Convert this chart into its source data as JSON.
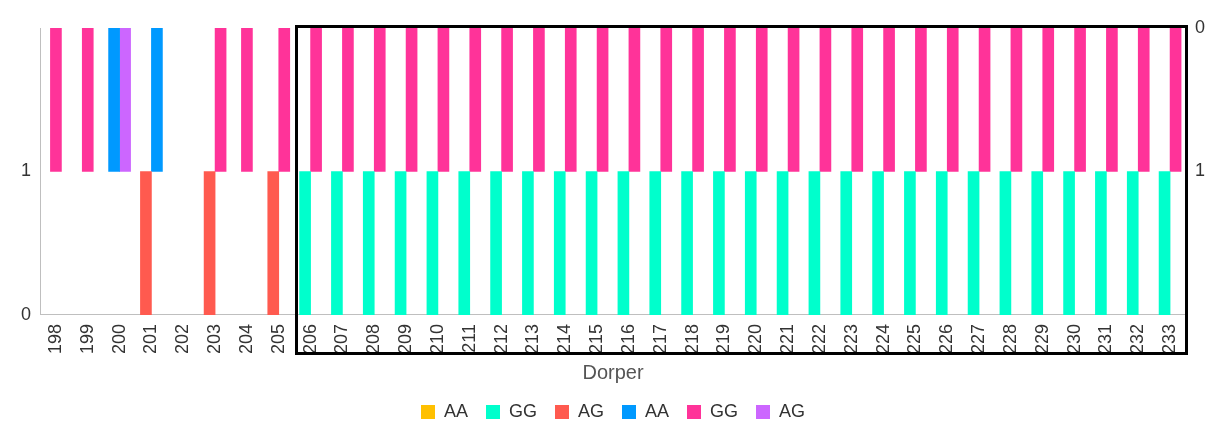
{
  "chart_data": {
    "type": "bar",
    "xlabel": "Dorper",
    "categories": [
      "198",
      "199",
      "200",
      "201",
      "202",
      "203",
      "204",
      "205",
      "206",
      "207",
      "208",
      "209",
      "210",
      "211",
      "212",
      "213",
      "214",
      "215",
      "216",
      "217",
      "218",
      "219",
      "220",
      "221",
      "222",
      "223",
      "224",
      "225",
      "226",
      "227",
      "228",
      "229",
      "230",
      "231",
      "232",
      "233"
    ],
    "series": [
      {
        "name": "AA",
        "color": "#ffc000",
        "values": [
          null,
          null,
          null,
          null,
          null,
          null,
          null,
          null,
          null,
          null,
          null,
          null,
          null,
          null,
          null,
          null,
          null,
          null,
          null,
          null,
          null,
          null,
          null,
          null,
          null,
          null,
          null,
          null,
          null,
          null,
          null,
          null,
          null,
          null,
          null,
          null
        ]
      },
      {
        "name": "GG",
        "color": "#00ffcc",
        "values": [
          null,
          null,
          null,
          null,
          null,
          null,
          null,
          null,
          1,
          1,
          1,
          1,
          1,
          1,
          1,
          1,
          1,
          1,
          1,
          1,
          1,
          1,
          1,
          1,
          1,
          1,
          1,
          1,
          1,
          1,
          1,
          1,
          1,
          1,
          1,
          1
        ]
      },
      {
        "name": "AG",
        "color": "#ff5a4f",
        "values": [
          null,
          null,
          null,
          1,
          null,
          1,
          null,
          1,
          null,
          null,
          null,
          null,
          null,
          null,
          null,
          null,
          null,
          null,
          null,
          null,
          null,
          null,
          null,
          null,
          null,
          null,
          null,
          null,
          null,
          null,
          null,
          null,
          null,
          null,
          null,
          null
        ]
      },
      {
        "name": "AA",
        "color": "#0099ff",
        "axis": "y2",
        "values": [
          null,
          null,
          1,
          1,
          null,
          null,
          null,
          null,
          null,
          null,
          null,
          null,
          null,
          null,
          null,
          null,
          null,
          null,
          null,
          null,
          null,
          null,
          null,
          null,
          null,
          null,
          null,
          null,
          null,
          null,
          null,
          null,
          null,
          null,
          null,
          null
        ]
      },
      {
        "name": "GG",
        "color": "#ff3399",
        "axis": "y2",
        "values": [
          1,
          1,
          null,
          null,
          null,
          1,
          1,
          1,
          1,
          1,
          1,
          1,
          1,
          1,
          1,
          1,
          1,
          1,
          1,
          1,
          1,
          1,
          1,
          1,
          1,
          1,
          1,
          1,
          1,
          1,
          1,
          1,
          1,
          1,
          1,
          1
        ]
      },
      {
        "name": "AG",
        "color": "#cc66ff",
        "axis": "y2",
        "values": [
          null,
          null,
          1,
          null,
          null,
          null,
          null,
          null,
          null,
          null,
          null,
          null,
          null,
          null,
          null,
          null,
          null,
          null,
          null,
          null,
          null,
          null,
          null,
          null,
          null,
          null,
          null,
          null,
          null,
          null,
          null,
          null,
          null,
          null,
          null,
          null
        ]
      }
    ],
    "ylim": [
      0,
      2
    ],
    "yticks": [
      0,
      1
    ],
    "y2lim": [
      2,
      0
    ],
    "y2ticks": [
      0,
      1
    ],
    "grid": false,
    "legend": "bottom"
  }
}
